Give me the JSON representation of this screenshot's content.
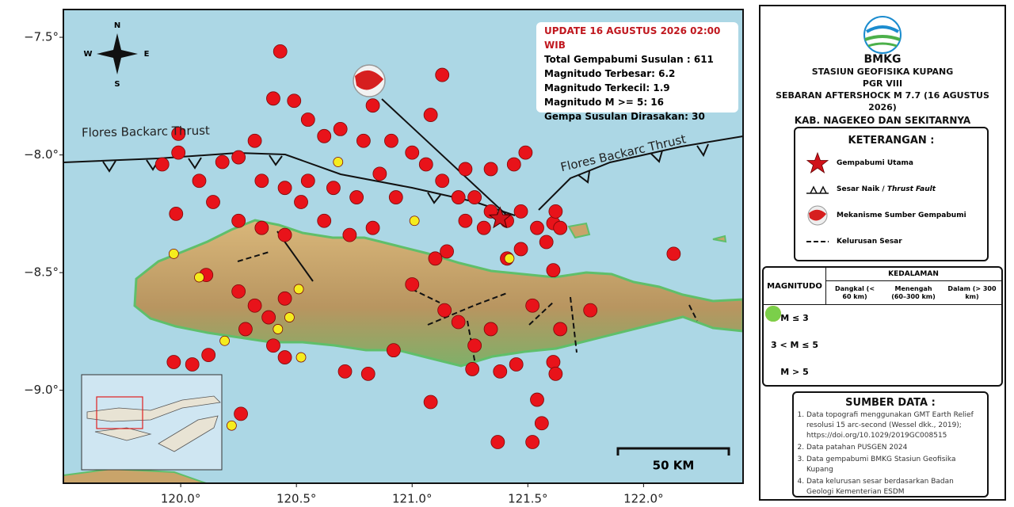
{
  "chart_data": {
    "type": "scatter",
    "xlim": [
      119.493,
      122.43
    ],
    "ylim": [
      -9.395,
      -7.382
    ],
    "xticks": [
      {
        "value": 120.0,
        "label": "120.0°"
      },
      {
        "value": 120.5,
        "label": "120.5°"
      },
      {
        "value": 121.0,
        "label": "121.0°"
      },
      {
        "value": 121.5,
        "label": "121.5°"
      },
      {
        "value": 122.0,
        "label": "122.0°"
      }
    ],
    "yticks": [
      {
        "value": -7.5,
        "label": "−7.5°"
      },
      {
        "value": -8.0,
        "label": "−8.0°"
      },
      {
        "value": -8.5,
        "label": "−8.5°"
      },
      {
        "value": -9.0,
        "label": "−9.0°"
      }
    ],
    "mainshock": {
      "x": 121.38,
      "y": -8.27,
      "color": "#d0121a"
    },
    "series": [
      {
        "name": "Dangkal (< 60 km)",
        "color": "#e8131a",
        "x": [
          120.43,
          121.13,
          120.83,
          121.08,
          119.99,
          119.92,
          119.98,
          120.08,
          120.14,
          120.25,
          120.32,
          120.4,
          120.49,
          120.55,
          120.62,
          120.69,
          120.79,
          120.91,
          121.0,
          121.06,
          121.13,
          121.23,
          121.34,
          121.44,
          121.49,
          121.27,
          121.34,
          121.41,
          121.47,
          121.54,
          121.61,
          121.58,
          121.47,
          121.41,
          121.61,
          121.64,
          121.62,
          121.31,
          121.23,
          121.2,
          120.35,
          120.45,
          120.55,
          120.66,
          120.76,
          120.86,
          120.93,
          120.25,
          120.35,
          120.45,
          120.52,
          120.62,
          120.73,
          120.83,
          120.11,
          120.25,
          120.32,
          120.38,
          120.45,
          120.4,
          120.28,
          120.45,
          119.97,
          120.05,
          120.12,
          120.71,
          120.81,
          120.92,
          121.08,
          121.0,
          121.14,
          121.2,
          121.27,
          121.34,
          121.26,
          121.38,
          121.45,
          121.54,
          121.56,
          121.37,
          121.52,
          121.61,
          121.62,
          121.77,
          122.13,
          120.26,
          121.64,
          121.52,
          120.18,
          121.1,
          121.15,
          119.99
        ],
        "values": [
          -7.56,
          -7.66,
          -7.79,
          -7.83,
          -7.91,
          -8.04,
          -8.25,
          -8.11,
          -8.2,
          -8.01,
          -7.94,
          -7.76,
          -7.77,
          -7.85,
          -7.92,
          -7.89,
          -7.94,
          -7.94,
          -7.99,
          -8.04,
          -8.11,
          -8.06,
          -8.06,
          -8.04,
          -7.99,
          -8.18,
          -8.24,
          -8.28,
          -8.24,
          -8.31,
          -8.29,
          -8.37,
          -8.4,
          -8.44,
          -8.49,
          -8.31,
          -8.24,
          -8.31,
          -8.28,
          -8.18,
          -8.11,
          -8.14,
          -8.11,
          -8.14,
          -8.18,
          -8.08,
          -8.18,
          -8.28,
          -8.31,
          -8.34,
          -8.2,
          -8.28,
          -8.34,
          -8.31,
          -8.51,
          -8.58,
          -8.64,
          -8.69,
          -8.61,
          -8.81,
          -8.74,
          -8.86,
          -8.88,
          -8.89,
          -8.85,
          -8.92,
          -8.93,
          -8.83,
          -9.05,
          -8.55,
          -8.66,
          -8.71,
          -8.81,
          -8.74,
          -8.91,
          -8.92,
          -8.89,
          -9.04,
          -9.14,
          -9.22,
          -9.22,
          -8.88,
          -8.93,
          -8.66,
          -8.42,
          -9.1,
          -8.74,
          -8.64,
          -8.03,
          -8.44,
          -8.41,
          -7.99
        ]
      },
      {
        "name": "Menengah (60–300 km)",
        "color": "#f5ec1e",
        "x": [
          120.68,
          121.42,
          120.51,
          120.52,
          120.42,
          120.08,
          120.19,
          120.22,
          121.01,
          119.97,
          120.47
        ],
        "values": [
          -8.03,
          -8.44,
          -8.57,
          -8.86,
          -8.74,
          -8.52,
          -8.79,
          -9.15,
          -8.28,
          -8.42,
          -8.69
        ]
      },
      {
        "name": "Dalam (> 300 km)",
        "color": "#7bcf4a",
        "x": [],
        "values": []
      }
    ]
  },
  "info": {
    "update": "UPDATE 16 AGUSTUS 2026 02:00 WIB",
    "lines": [
      "Total Gempabumi Susulan : 611",
      "Magnitudo Terbesar: 6.2",
      "Magnitudo Terkecil: 1.9",
      "Magnitudo M >= 5: 16",
      "Gempa Susulan Dirasakan: 30"
    ]
  },
  "faults": [
    "Flores Backarc Thrust",
    "Flores Backarc Thrust"
  ],
  "compass": [
    "N",
    "W",
    "E",
    "S"
  ],
  "scale": "50 KM",
  "panel": {
    "org": "BMKG",
    "station": "STASIUN GEOFISIKA KUPANG",
    "region": "PGR VIII",
    "title": "SEBARAN AFTERSHOCK M 7.7 (16 AGUSTUS 2026)",
    "subtitle": "KAB. NAGEKEO DAN SEKITARNYA",
    "legend_title": "KETERANGAN :",
    "legend": [
      "Gempabumi Utama",
      "Sesar Naik /",
      "Thrust Fault",
      "Mekanisme Sumber Gempabumi",
      "Kelurusan Sesar"
    ],
    "depth_title": "KEDALAMAN",
    "magnitude_title": "MAGNITUDO",
    "magnitude_rows": [
      "M ≤ 3",
      "3 < M ≤ 5",
      "M > 5"
    ],
    "source_title": "SUMBER DATA :",
    "sources": [
      "Data topografi menggunakan GMT Earth Relief resolusi 15 arc-second (Wessel dkk., 2019); https://doi.org/10.1029/2019GC008515",
      "Data patahan PUSGEN 2024",
      "Data gempabumi BMKG Stasiun Geofisika Kupang",
      "Data kelurusan sesar berdasarkan Badan Geologi Kementerian ESDM"
    ]
  }
}
